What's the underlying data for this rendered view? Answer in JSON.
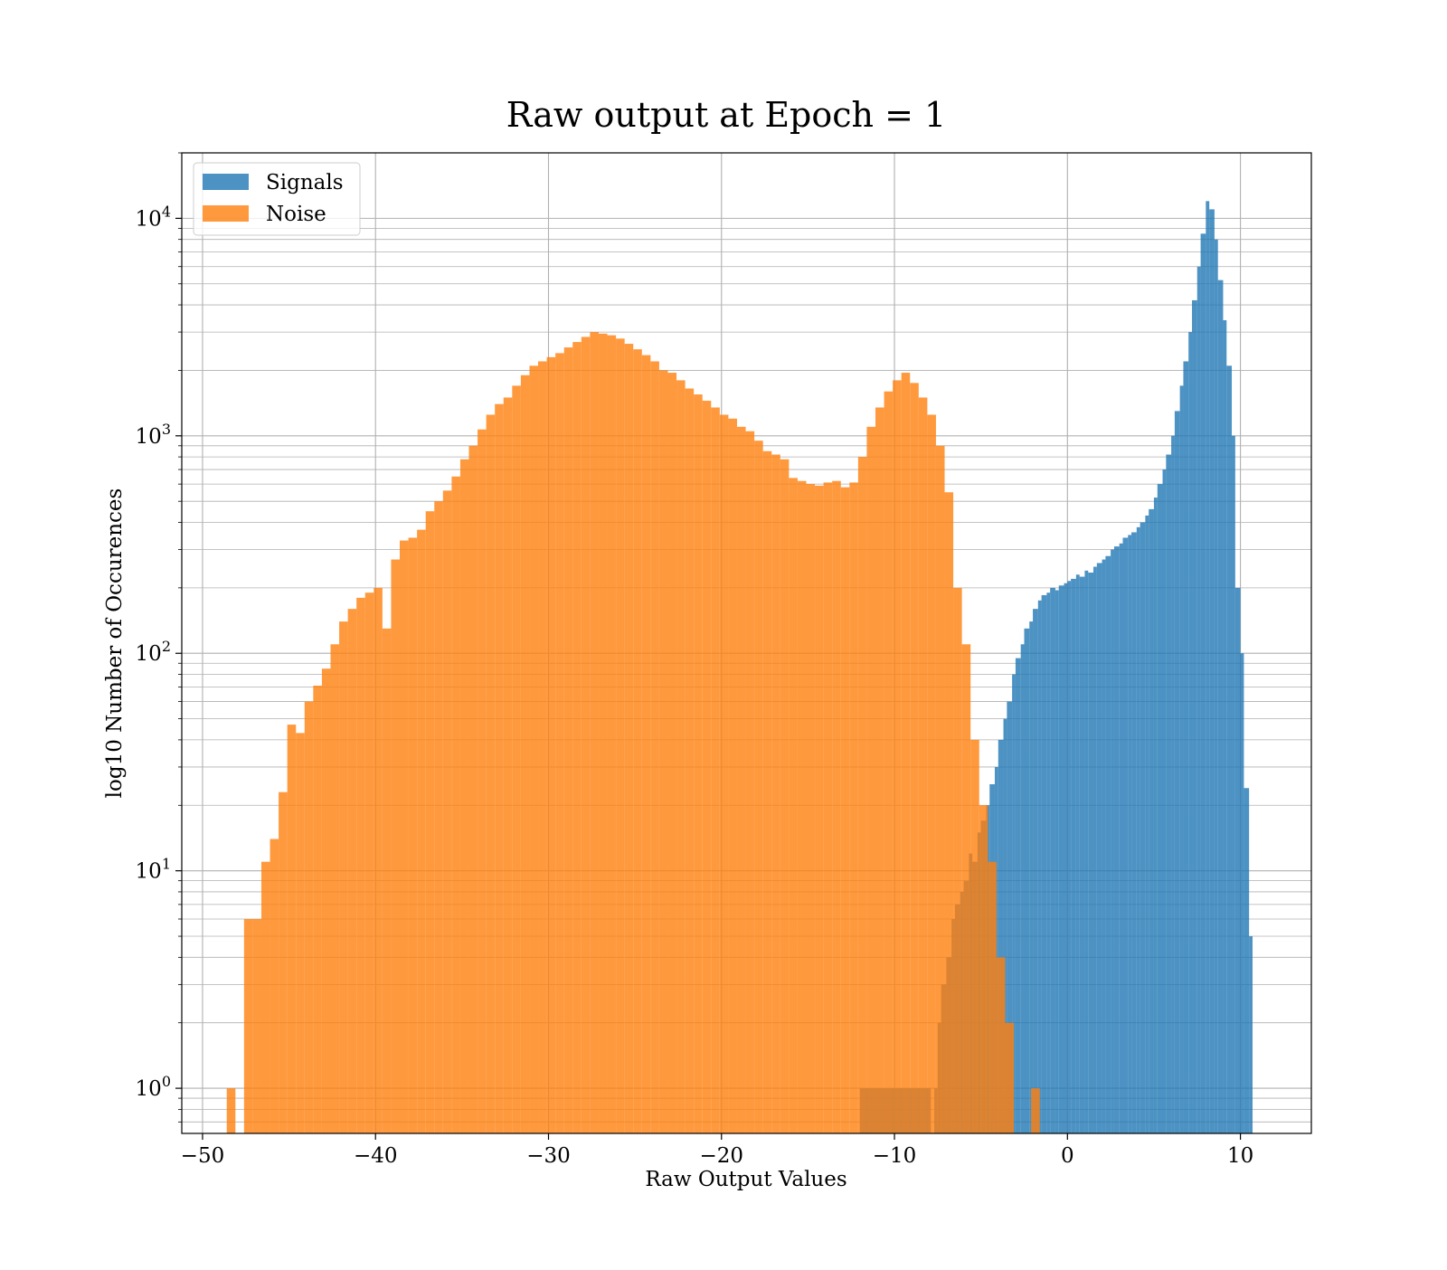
{
  "chart_data": {
    "type": "bar",
    "title": "Raw output at Epoch = 1",
    "xlabel": "Raw Output Values",
    "ylabel": "log10 Number of Occurences",
    "xlim": [
      -51.2,
      14.1
    ],
    "ylim": [
      0.62,
      20000
    ],
    "yscale": "log",
    "grid": true,
    "legend_position": "upper left",
    "x_ticks": [
      {
        "value": -50,
        "label": "−50"
      },
      {
        "value": -40,
        "label": "−40"
      },
      {
        "value": -30,
        "label": "−30"
      },
      {
        "value": -20,
        "label": "−20"
      },
      {
        "value": -10,
        "label": "−10"
      },
      {
        "value": 0,
        "label": "0"
      },
      {
        "value": 10,
        "label": "10"
      }
    ],
    "y_ticks": [
      {
        "value": 1,
        "base": "10",
        "exp": "0"
      },
      {
        "value": 10,
        "base": "10",
        "exp": "1"
      },
      {
        "value": 100,
        "base": "10",
        "exp": "2"
      },
      {
        "value": 1000,
        "base": "10",
        "exp": "3"
      },
      {
        "value": 10000,
        "base": "10",
        "exp": "4"
      }
    ],
    "series": [
      {
        "name": "Signals",
        "color": "#1f77b4",
        "opacity": 0.8,
        "bin_edges": [
          -12,
          -7.9,
          -7.7,
          -7.5,
          -7.3,
          -7.0,
          -6.7,
          -6.5,
          -6.2,
          -6.0,
          -5.7,
          -5.5,
          -5.2,
          -5.0,
          -4.7,
          -4.5,
          -4.2,
          -4.0,
          -3.7,
          -3.5,
          -3.2,
          -3.0,
          -2.7,
          -2.5,
          -2.2,
          -2.0,
          -1.7,
          -1.5,
          -1.2,
          -1.0,
          -0.7,
          -0.5,
          -0.2,
          0.0,
          0.2,
          0.5,
          0.7,
          1.0,
          1.2,
          1.5,
          1.7,
          2.0,
          2.2,
          2.5,
          2.7,
          3.0,
          3.2,
          3.5,
          3.7,
          4.0,
          4.2,
          4.5,
          4.7,
          5.0,
          5.2,
          5.5,
          5.7,
          6.0,
          6.2,
          6.5,
          6.7,
          7.0,
          7.2,
          7.5,
          7.7,
          8.0,
          8.2,
          8.5,
          8.7,
          9.0,
          9.2,
          9.5,
          9.7,
          10.0,
          10.2,
          10.5,
          10.7,
          11.0,
          11.3
        ],
        "values": [
          1,
          0,
          1,
          2,
          3,
          4,
          6,
          7,
          8,
          9,
          12,
          11,
          15,
          17,
          20,
          25,
          30,
          40,
          50,
          60,
          80,
          95,
          110,
          130,
          140,
          160,
          175,
          185,
          190,
          200,
          195,
          205,
          210,
          215,
          220,
          230,
          225,
          240,
          235,
          250,
          260,
          270,
          280,
          300,
          310,
          320,
          340,
          350,
          360,
          380,
          400,
          430,
          460,
          520,
          600,
          700,
          820,
          1000,
          1300,
          1700,
          2200,
          3000,
          4200,
          6000,
          8500,
          12000,
          11000,
          8000,
          5200,
          3400,
          2100,
          1000,
          200,
          100,
          24,
          5,
          0,
          0
        ]
      },
      {
        "name": "Noise",
        "color": "#ff7f0e",
        "opacity": 0.8,
        "bin_edges": [
          -48.6,
          -48.1,
          -47.6,
          -47.1,
          -46.6,
          -46.1,
          -45.6,
          -45.1,
          -44.6,
          -44.1,
          -43.6,
          -43.1,
          -42.6,
          -42.1,
          -41.6,
          -41.1,
          -40.6,
          -40.1,
          -39.6,
          -39.1,
          -38.6,
          -38.1,
          -37.6,
          -37.1,
          -36.6,
          -36.1,
          -35.6,
          -35.1,
          -34.6,
          -34.1,
          -33.6,
          -33.1,
          -32.6,
          -32.1,
          -31.6,
          -31.1,
          -30.6,
          -30.1,
          -29.6,
          -29.1,
          -28.6,
          -28.1,
          -27.6,
          -27.1,
          -26.6,
          -26.1,
          -25.6,
          -25.1,
          -24.6,
          -24.1,
          -23.6,
          -23.1,
          -22.6,
          -22.1,
          -21.6,
          -21.1,
          -20.6,
          -20.1,
          -19.6,
          -19.1,
          -18.6,
          -18.1,
          -17.6,
          -17.1,
          -16.6,
          -16.1,
          -15.6,
          -15.1,
          -14.6,
          -14.1,
          -13.6,
          -13.1,
          -12.6,
          -12.1,
          -11.6,
          -11.1,
          -10.6,
          -10.1,
          -9.6,
          -9.1,
          -8.6,
          -8.1,
          -7.6,
          -7.1,
          -6.6,
          -6.1,
          -5.6,
          -5.1,
          -4.6,
          -4.1,
          -3.6,
          -3.1,
          -2.6,
          -2.1,
          -1.6,
          -1.1,
          -0.6,
          -0.1,
          0.4,
          0.9,
          1.4,
          1.9,
          2.4,
          2.9,
          3.4,
          3.9,
          4.4
        ],
        "values": [
          1,
          0,
          6,
          6,
          11,
          14,
          23,
          47,
          43,
          60,
          71,
          85,
          110,
          140,
          160,
          180,
          190,
          200,
          130,
          270,
          330,
          340,
          370,
          450,
          500,
          560,
          650,
          780,
          900,
          1070,
          1250,
          1400,
          1500,
          1700,
          1900,
          2100,
          2200,
          2300,
          2400,
          2550,
          2700,
          2850,
          3000,
          2950,
          2900,
          2800,
          2650,
          2500,
          2350,
          2200,
          2000,
          1950,
          1800,
          1650,
          1550,
          1450,
          1350,
          1250,
          1200,
          1100,
          1050,
          950,
          850,
          820,
          780,
          640,
          620,
          600,
          590,
          610,
          620,
          580,
          610,
          800,
          1100,
          1350,
          1600,
          1800,
          1950,
          1750,
          1500,
          1250,
          900,
          550,
          200,
          110,
          40,
          20,
          11,
          4,
          2,
          0,
          0,
          1,
          0,
          0,
          0,
          0,
          0,
          0,
          0,
          0,
          0,
          0,
          0,
          0
        ]
      }
    ]
  }
}
